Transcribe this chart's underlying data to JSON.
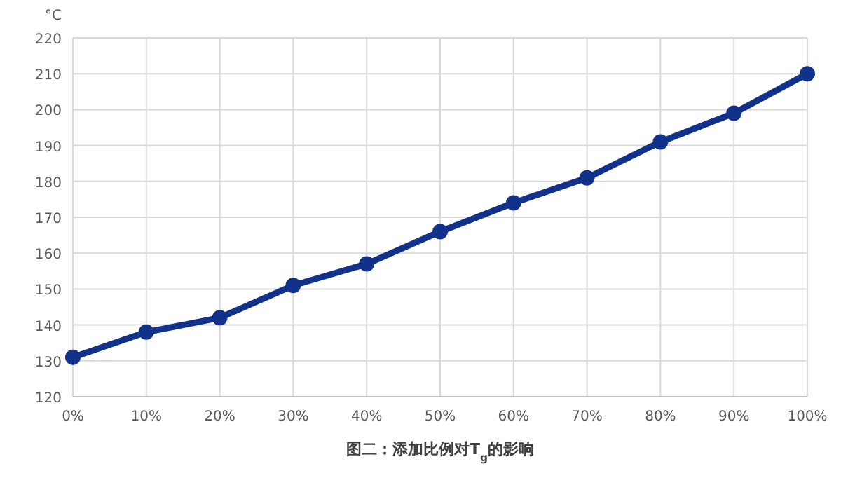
{
  "chart_data": {
    "type": "line",
    "title": "图二：添加比例对T$_{g}$的影响",
    "ylabel": "°C",
    "categories": [
      "0%",
      "10%",
      "20%",
      "30%",
      "40%",
      "50%",
      "60%",
      "70%",
      "80%",
      "90%",
      "100%"
    ],
    "values": [
      131,
      138,
      142,
      151,
      157,
      166,
      174,
      181,
      191,
      199,
      210
    ],
    "color": "#11318a",
    "ylim": [
      120,
      220
    ],
    "yticks": [
      120,
      130,
      140,
      150,
      160,
      170,
      180,
      190,
      200,
      210,
      220
    ],
    "grid": true,
    "marker": "circle",
    "line_style": "solid"
  }
}
